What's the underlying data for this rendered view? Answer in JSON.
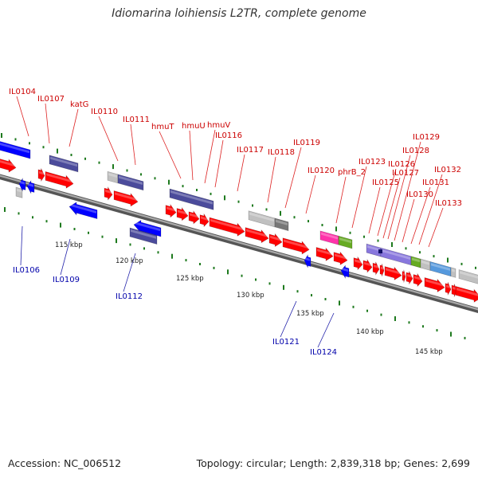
{
  "title": "Idiomarina loihiensis L2TR, complete genome",
  "footer": {
    "accession": "Accession: NC_006512",
    "summary": "Topology: circular; Length: 2,839,318 bp; Genes: 2,699"
  },
  "colors": {
    "forward_label": "#cc0000",
    "reverse_label": "#0000aa",
    "cds": "#ff0000",
    "blue": "#0000ff",
    "purple": "#4b4b9b",
    "gray": "#c0c0c0",
    "magenta": "#ff33aa",
    "olive": "#66aa22",
    "steel": "#5599dd",
    "lavender": "#8877dd",
    "tick": "#1e7a1e"
  },
  "scale_labels": [
    "115 kbp",
    "120 kbp",
    "125 kbp",
    "130 kbp",
    "135 kbp",
    "140 kbp",
    "145 kbp"
  ],
  "labels": [
    {
      "text": "IL0104",
      "strand": "forward"
    },
    {
      "text": "IL0107",
      "strand": "forward"
    },
    {
      "text": "katG",
      "strand": "forward"
    },
    {
      "text": "IL0110",
      "strand": "forward"
    },
    {
      "text": "IL0111",
      "strand": "forward"
    },
    {
      "text": "hmuT",
      "strand": "forward"
    },
    {
      "text": "hmuU",
      "strand": "forward"
    },
    {
      "text": "hmuV",
      "strand": "forward"
    },
    {
      "text": "IL0116",
      "strand": "forward"
    },
    {
      "text": "IL0117",
      "strand": "forward"
    },
    {
      "text": "IL0118",
      "strand": "forward"
    },
    {
      "text": "IL0119",
      "strand": "forward"
    },
    {
      "text": "IL0120",
      "strand": "forward"
    },
    {
      "text": "phrB_2",
      "strand": "forward"
    },
    {
      "text": "IL0123",
      "strand": "forward"
    },
    {
      "text": "IL0125",
      "strand": "forward"
    },
    {
      "text": "IL0126",
      "strand": "forward"
    },
    {
      "text": "IL0127",
      "strand": "forward"
    },
    {
      "text": "IL0128",
      "strand": "forward"
    },
    {
      "text": "IL0129",
      "strand": "forward"
    },
    {
      "text": "IL0130",
      "strand": "forward"
    },
    {
      "text": "IL0131",
      "strand": "forward"
    },
    {
      "text": "IL0132",
      "strand": "forward"
    },
    {
      "text": "IL0133",
      "strand": "forward"
    },
    {
      "text": "IL0106",
      "strand": "reverse"
    },
    {
      "text": "IL0109",
      "strand": "reverse"
    },
    {
      "text": "IL0112",
      "strand": "reverse"
    },
    {
      "text": "IL0121",
      "strand": "reverse"
    },
    {
      "text": "IL0124",
      "strand": "reverse"
    }
  ]
}
